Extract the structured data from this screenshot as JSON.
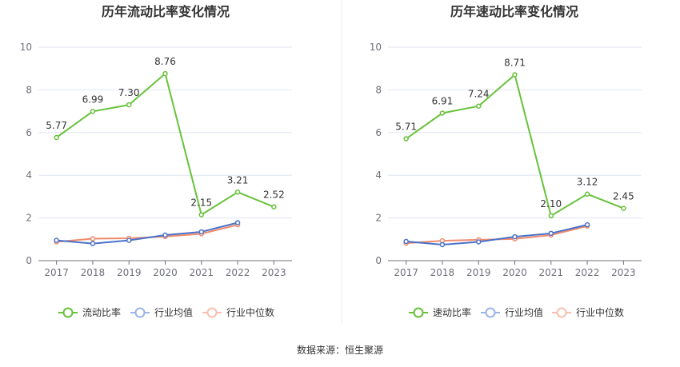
{
  "source": "数据来源：恒生聚源",
  "colors": {
    "main": "#67c23a",
    "industry_avg": "#4a72c8",
    "industry_median": "#f08a6e",
    "legend_avg": "#9bb4e8",
    "legend_median": "#f7bfae"
  },
  "chart_data": [
    {
      "type": "line",
      "title": "历年流动比率变化情况",
      "categories": [
        "2017",
        "2018",
        "2019",
        "2020",
        "2021",
        "2022",
        "2023"
      ],
      "ylim": [
        0,
        10
      ],
      "yticks": [
        "0",
        "2",
        "4",
        "6",
        "8",
        "10"
      ],
      "grid": true,
      "legend_position": "bottom",
      "series": [
        {
          "name": "流动比率",
          "values": [
            5.77,
            6.99,
            7.3,
            8.76,
            2.15,
            3.21,
            2.52
          ],
          "labels": [
            "5.77",
            "6.99",
            "7.30",
            "8.76",
            "2.15",
            "3.21",
            "2.52"
          ]
        },
        {
          "name": "行业均值",
          "values": [
            0.95,
            0.8,
            0.95,
            1.2,
            1.35,
            1.78,
            null
          ]
        },
        {
          "name": "行业中位数",
          "values": [
            0.88,
            1.03,
            1.05,
            1.13,
            1.26,
            1.68,
            null
          ]
        }
      ]
    },
    {
      "type": "line",
      "title": "历年速动比率变化情况",
      "categories": [
        "2017",
        "2018",
        "2019",
        "2020",
        "2021",
        "2022",
        "2023"
      ],
      "ylim": [
        0,
        10
      ],
      "yticks": [
        "0",
        "2",
        "4",
        "6",
        "8",
        "10"
      ],
      "grid": true,
      "legend_position": "bottom",
      "series": [
        {
          "name": "速动比率",
          "values": [
            5.71,
            6.91,
            7.24,
            8.71,
            2.1,
            3.12,
            2.45
          ],
          "labels": [
            "5.71",
            "6.91",
            "7.24",
            "8.71",
            "2.10",
            "3.12",
            "2.45"
          ]
        },
        {
          "name": "行业均值",
          "values": [
            0.9,
            0.75,
            0.88,
            1.12,
            1.28,
            1.68,
            null
          ]
        },
        {
          "name": "行业中位数",
          "values": [
            0.82,
            0.93,
            0.98,
            1.02,
            1.2,
            1.62,
            null
          ]
        }
      ]
    }
  ]
}
